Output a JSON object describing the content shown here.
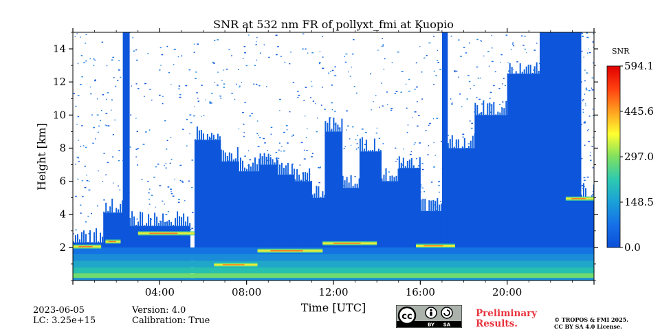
{
  "chart_data": {
    "type": "heatmap",
    "title": "SNR at 532 nm FR of pollyxt_fmi at Kuopio",
    "xlabel": "Time [UTC]",
    "ylabel": "Height [km]",
    "xlim_hours": [
      0,
      24
    ],
    "ylim_km": [
      0,
      15
    ],
    "x_ticks": [
      {
        "value": 4,
        "label": "04:00"
      },
      {
        "value": 8,
        "label": "08:00"
      },
      {
        "value": 12,
        "label": "12:00"
      },
      {
        "value": 16,
        "label": "16:00"
      },
      {
        "value": 20,
        "label": "20:00"
      }
    ],
    "y_ticks": [
      {
        "value": 2,
        "label": "2"
      },
      {
        "value": 4,
        "label": "4"
      },
      {
        "value": 6,
        "label": "6"
      },
      {
        "value": 8,
        "label": "8"
      },
      {
        "value": 10,
        "label": "10"
      },
      {
        "value": 12,
        "label": "12"
      },
      {
        "value": 14,
        "label": "14"
      }
    ],
    "colorbar": {
      "label": "SNR",
      "range": [
        0.0,
        594.1
      ],
      "ticks": [
        "0.0",
        "148.5",
        "297.0",
        "445.6",
        "594.1"
      ],
      "colors": [
        "#0b4fd8",
        "#1670e8",
        "#1aa0d8",
        "#2ec9b0",
        "#7fe060",
        "#ffff30",
        "#ffa020",
        "#ff4010",
        "#e00000"
      ]
    },
    "cloud_columns": [
      {
        "start_h": 0.0,
        "end_h": 1.4,
        "top_km": 2.3
      },
      {
        "start_h": 1.4,
        "end_h": 2.3,
        "top_km": 4.1
      },
      {
        "start_h": 2.3,
        "end_h": 2.6,
        "top_km": 15.0
      },
      {
        "start_h": 2.6,
        "end_h": 5.4,
        "top_km": 3.3
      },
      {
        "start_h": 5.6,
        "end_h": 6.8,
        "top_km": 8.5
      },
      {
        "start_h": 6.8,
        "end_h": 7.6,
        "top_km": 7.2
      },
      {
        "start_h": 7.6,
        "end_h": 8.6,
        "top_km": 6.6
      },
      {
        "start_h": 8.6,
        "end_h": 9.4,
        "top_km": 7.0
      },
      {
        "start_h": 9.4,
        "end_h": 10.2,
        "top_km": 6.4
      },
      {
        "start_h": 10.2,
        "end_h": 11.0,
        "top_km": 6.0
      },
      {
        "start_h": 11.0,
        "end_h": 11.6,
        "top_km": 5.0
      },
      {
        "start_h": 11.6,
        "end_h": 12.4,
        "top_km": 9.0
      },
      {
        "start_h": 12.4,
        "end_h": 13.2,
        "top_km": 5.6
      },
      {
        "start_h": 13.2,
        "end_h": 14.2,
        "top_km": 7.8
      },
      {
        "start_h": 14.2,
        "end_h": 15.0,
        "top_km": 6.0
      },
      {
        "start_h": 15.0,
        "end_h": 16.0,
        "top_km": 6.8
      },
      {
        "start_h": 16.0,
        "end_h": 17.0,
        "top_km": 4.2
      },
      {
        "start_h": 17.0,
        "end_h": 17.25,
        "top_km": 15.0
      },
      {
        "start_h": 17.25,
        "end_h": 18.5,
        "top_km": 8.0
      },
      {
        "start_h": 18.5,
        "end_h": 20.0,
        "top_km": 10.0
      },
      {
        "start_h": 20.0,
        "end_h": 21.5,
        "top_km": 12.5
      },
      {
        "start_h": 21.5,
        "end_h": 23.4,
        "top_km": 15.0
      },
      {
        "start_h": 23.4,
        "end_h": 24.0,
        "top_km": 5.0
      }
    ],
    "bright_layers": [
      {
        "start_h": 0.0,
        "end_h": 1.3,
        "height_km": 2.05
      },
      {
        "start_h": 1.5,
        "end_h": 2.2,
        "height_km": 2.35
      },
      {
        "start_h": 3.0,
        "end_h": 5.6,
        "height_km": 2.85
      },
      {
        "start_h": 6.5,
        "end_h": 8.5,
        "height_km": 0.95
      },
      {
        "start_h": 8.5,
        "end_h": 11.5,
        "height_km": 1.8
      },
      {
        "start_h": 11.5,
        "end_h": 14.0,
        "height_km": 2.25
      },
      {
        "start_h": 15.8,
        "end_h": 17.6,
        "height_km": 2.1
      },
      {
        "start_h": 22.7,
        "end_h": 24.0,
        "height_km": 4.95
      }
    ]
  },
  "meta": {
    "date": "2023-06-05",
    "lc": "LC: 3.25e+15",
    "version": "Version: 4.0",
    "calibration": "Calibration: True"
  },
  "branding": {
    "cc_main": "cc",
    "cc_by": "BY",
    "cc_sa": "SA",
    "preliminary_line1": "Preliminary",
    "preliminary_line2": "Results.",
    "copyright_line1": "© TROPOS & FMI 2025.",
    "copyright_line2": "CC BY SA 4.0 License."
  }
}
